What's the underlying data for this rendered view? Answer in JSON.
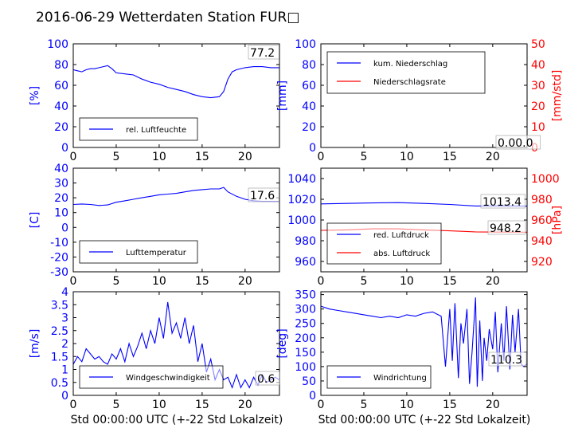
{
  "title": "2016-06-29 Wetterdaten Station FUR□",
  "colors": {
    "blue": "#0000ff",
    "red": "#ff0000",
    "black": "#000000"
  },
  "chart_data": [
    {
      "id": "humidity",
      "type": "line",
      "ylabel": "[%]",
      "ylim": [
        0,
        100
      ],
      "yticks": [
        0,
        20,
        40,
        60,
        80,
        100
      ],
      "xlim": [
        0,
        24
      ],
      "xticks": [
        0,
        5,
        10,
        15,
        20
      ],
      "legend": {
        "placement": "lower-left",
        "entries": [
          {
            "label": "rel. Luftfeuchte",
            "color": "#0000ff"
          }
        ]
      },
      "annotation": "77.2",
      "series": [
        {
          "name": "rel. Luftfeuchte",
          "color": "#0000ff",
          "x": [
            0,
            0.5,
            1,
            1.5,
            2,
            2.5,
            3,
            3.5,
            4,
            4.5,
            5,
            6,
            7,
            8,
            9,
            10,
            11,
            12,
            13,
            14,
            15,
            16,
            17,
            17.5,
            18,
            18.5,
            19,
            20,
            21,
            22,
            23,
            24
          ],
          "y": [
            75,
            74,
            73,
            75,
            76,
            76,
            77,
            78,
            79,
            76,
            72,
            71,
            70,
            66,
            63,
            61,
            58,
            56,
            54,
            51,
            49,
            48,
            49,
            54,
            66,
            73,
            75,
            77,
            78,
            78,
            77,
            77
          ]
        }
      ]
    },
    {
      "id": "precip",
      "type": "line",
      "ylabel": "[mm]",
      "ylim": [
        0,
        100
      ],
      "yticks": [
        0,
        20,
        40,
        60,
        80,
        100
      ],
      "ylabel2": "[mm/std]",
      "ylim2": [
        0,
        50
      ],
      "yticks2": [
        0,
        10,
        20,
        30,
        40,
        50
      ],
      "xlim": [
        0,
        24
      ],
      "xticks": [
        0,
        5,
        10,
        15,
        20
      ],
      "legend": {
        "placement": "upper-left",
        "entries": [
          {
            "label": "kum. Niederschlag",
            "color": "#0000ff"
          },
          {
            "label": "Niederschlagsrate",
            "color": "#ff0000"
          }
        ]
      },
      "annotation": "0.00.0",
      "series": [
        {
          "name": "kum. Niederschlag",
          "color": "#0000ff",
          "axis": "left",
          "x": [
            0,
            24
          ],
          "y": [
            0,
            0
          ]
        },
        {
          "name": "Niederschlagsrate",
          "color": "#ff0000",
          "axis": "right",
          "x": [
            0,
            24
          ],
          "y": [
            0,
            0
          ]
        }
      ]
    },
    {
      "id": "temp",
      "type": "line",
      "ylabel": "[C]",
      "ylim": [
        -30,
        40
      ],
      "yticks": [
        -30,
        -20,
        -10,
        0,
        10,
        20,
        30,
        40
      ],
      "xlim": [
        0,
        24
      ],
      "xticks": [
        0,
        5,
        10,
        15,
        20
      ],
      "legend": {
        "placement": "lower-left",
        "entries": [
          {
            "label": "Lufttemperatur",
            "color": "#0000ff"
          }
        ]
      },
      "annotation": "17.6",
      "series": [
        {
          "name": "Lufttemperatur",
          "color": "#0000ff",
          "x": [
            0,
            1,
            2,
            3,
            4,
            5,
            6,
            7,
            8,
            9,
            10,
            11,
            12,
            13,
            14,
            15,
            16,
            17,
            17.5,
            18,
            19,
            20,
            21,
            22,
            23,
            24
          ],
          "y": [
            15.5,
            15.8,
            15.5,
            14.8,
            15.2,
            17,
            18,
            19,
            20,
            21,
            22,
            22.5,
            23,
            24,
            25,
            25.5,
            26,
            26,
            27,
            24,
            21,
            19,
            18,
            17.6,
            17.6,
            17.6
          ]
        }
      ]
    },
    {
      "id": "pressure",
      "type": "line",
      "ylabel": "",
      "ylim": [
        950,
        1050
      ],
      "yticks": [
        960,
        980,
        1000,
        1020,
        1040
      ],
      "ylabel2": "[hPa]",
      "ylim2": [
        910,
        1010
      ],
      "yticks2": [
        920,
        940,
        960,
        980,
        1000
      ],
      "xlim": [
        0,
        24
      ],
      "xticks": [
        0,
        5,
        10,
        15,
        20
      ],
      "legend": {
        "placement": "lower-left",
        "entries": [
          {
            "label": "red. Luftdruck",
            "color": "#0000ff"
          },
          {
            "label": "abs. Luftdruck",
            "color": "#ff0000"
          }
        ]
      },
      "annotations": [
        "1013.4",
        "948.2"
      ],
      "series": [
        {
          "name": "red. Luftdruck",
          "color": "#0000ff",
          "axis": "left",
          "x": [
            0,
            3,
            6,
            9,
            12,
            15,
            18,
            21,
            24
          ],
          "y": [
            1015.5,
            1016,
            1016.5,
            1016.8,
            1016,
            1015,
            1013.5,
            1013.6,
            1013.4
          ]
        },
        {
          "name": "abs. Luftdruck",
          "color": "#ff0000",
          "axis": "right",
          "x": [
            0,
            3,
            6,
            9,
            12,
            15,
            18,
            21,
            24
          ],
          "y": [
            950,
            950.5,
            951.5,
            951.5,
            950.5,
            949.5,
            948.5,
            948.3,
            948.2
          ]
        }
      ]
    },
    {
      "id": "wind",
      "type": "line",
      "ylabel": "[m/s]",
      "ylim": [
        0,
        4
      ],
      "yticks": [
        0.0,
        0.5,
        1.0,
        1.5,
        2.0,
        2.5,
        3.0,
        3.5,
        4.0
      ],
      "xlim": [
        0,
        24
      ],
      "xticks": [
        0,
        5,
        10,
        15,
        20
      ],
      "legend": {
        "placement": "lower-left",
        "entries": [
          {
            "label": "Windgeschwindigkeit",
            "color": "#0000ff"
          }
        ]
      },
      "annotation": "0.6",
      "series": [
        {
          "name": "Windgeschwindigkeit",
          "color": "#0000ff",
          "x": [
            0,
            0.5,
            1,
            1.5,
            2,
            2.5,
            3,
            3.5,
            4,
            4.5,
            5,
            5.5,
            6,
            6.5,
            7,
            7.5,
            8,
            8.5,
            9,
            9.5,
            10,
            10.5,
            11,
            11.5,
            12,
            12.5,
            13,
            13.5,
            14,
            14.5,
            15,
            15.5,
            16,
            16.5,
            17,
            17.5,
            18,
            18.5,
            19,
            19.5,
            20,
            20.5,
            21,
            21.5,
            22,
            22.5,
            23,
            23.5,
            24
          ],
          "y": [
            1.2,
            1.5,
            1.3,
            1.8,
            1.6,
            1.4,
            1.5,
            1.3,
            1.2,
            1.6,
            1.4,
            1.8,
            1.3,
            2.0,
            1.5,
            1.9,
            2.4,
            1.8,
            2.5,
            2.0,
            3.0,
            2.2,
            3.6,
            2.4,
            2.8,
            2.2,
            3.0,
            2.0,
            2.7,
            1.3,
            2.0,
            0.9,
            1.4,
            0.6,
            1.0,
            0.6,
            0.7,
            0.3,
            0.8,
            0.3,
            0.6,
            0.3,
            0.7,
            0.4,
            0.8,
            0.5,
            0.6,
            0.7,
            0.6
          ]
        }
      ]
    },
    {
      "id": "winddir",
      "type": "line",
      "ylabel": "[deg]",
      "ylim": [
        0,
        360
      ],
      "yticks": [
        0,
        50,
        100,
        150,
        200,
        250,
        300,
        350
      ],
      "xlim": [
        0,
        24
      ],
      "xticks": [
        0,
        5,
        10,
        15,
        20
      ],
      "legend": {
        "placement": "lower-left",
        "entries": [
          {
            "label": "Windrichtung",
            "color": "#0000ff"
          }
        ]
      },
      "annotation": "110.3",
      "series": [
        {
          "name": "Windrichtung",
          "color": "#0000ff",
          "x": [
            0,
            1,
            2,
            3,
            4,
            5,
            6,
            7,
            8,
            9,
            10,
            11,
            12,
            13,
            14,
            14.5,
            15,
            15.3,
            15.6,
            16,
            16.3,
            16.6,
            17,
            17.3,
            17.6,
            18,
            18.2,
            18.5,
            18.8,
            19,
            19.3,
            19.6,
            20,
            20.3,
            20.6,
            21,
            21.3,
            21.6,
            22,
            22.3,
            22.6,
            23,
            23.3,
            23.6,
            24
          ],
          "y": [
            310,
            300,
            295,
            290,
            285,
            280,
            275,
            270,
            275,
            270,
            280,
            275,
            285,
            290,
            275,
            100,
            300,
            120,
            320,
            60,
            250,
            180,
            300,
            40,
            150,
            340,
            30,
            260,
            50,
            200,
            120,
            230,
            160,
            290,
            80,
            250,
            120,
            310,
            90,
            280,
            150,
            300,
            110,
            100,
            110
          ]
        }
      ]
    }
  ],
  "xaxis_label": "Std 00:00:00 UTC (+-22 Std Lokalzeit)"
}
